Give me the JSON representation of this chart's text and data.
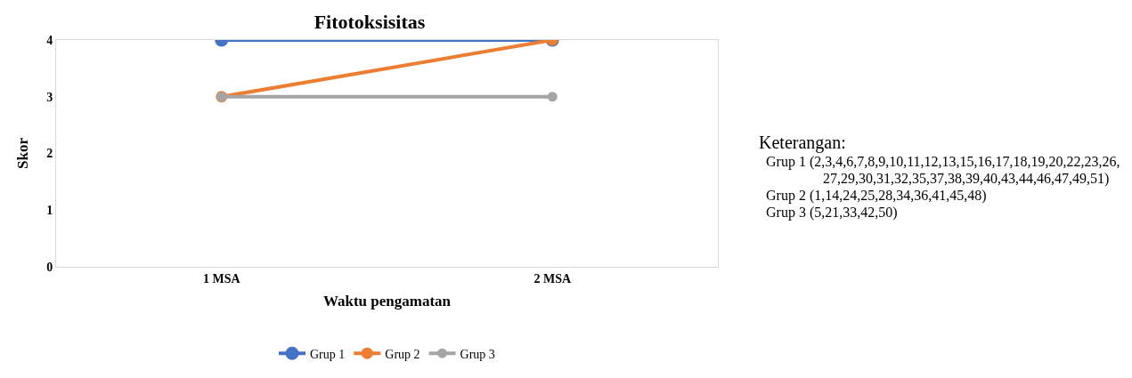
{
  "chart_data": {
    "type": "line",
    "title": "Fitotoksisitas",
    "xlabel": "Waktu pengamatan",
    "ylabel": "Skor",
    "categories": [
      "1 MSA",
      "2 MSA"
    ],
    "series": [
      {
        "name": "Grup 1",
        "color": "#4472c4",
        "values": [
          4,
          4
        ]
      },
      {
        "name": "Grup 2",
        "color": "#ed7d31",
        "values": [
          3,
          4
        ]
      },
      {
        "name": "Grup 3",
        "color": "#a5a5a5",
        "values": [
          3,
          3
        ]
      }
    ],
    "ylim": [
      0,
      4
    ],
    "yticks": [
      0,
      1,
      2,
      3,
      4
    ],
    "grid": false,
    "legend": "bottom",
    "marker": "circle",
    "line_style": "solid",
    "annotations": [
      "Keterangan:",
      "Grup 1 (2,3,4,6,7,8,9,10,11,12,13,15,16,17,18,19,20,22,23,26,27,29,30,31,32,35,37,38,39,40,43,44,46,47,49,51)",
      "Grup 2 (1,14,24,25,28,34,36,41,45,48)",
      "Grup 3 (5,21,33,42,50)"
    ]
  }
}
